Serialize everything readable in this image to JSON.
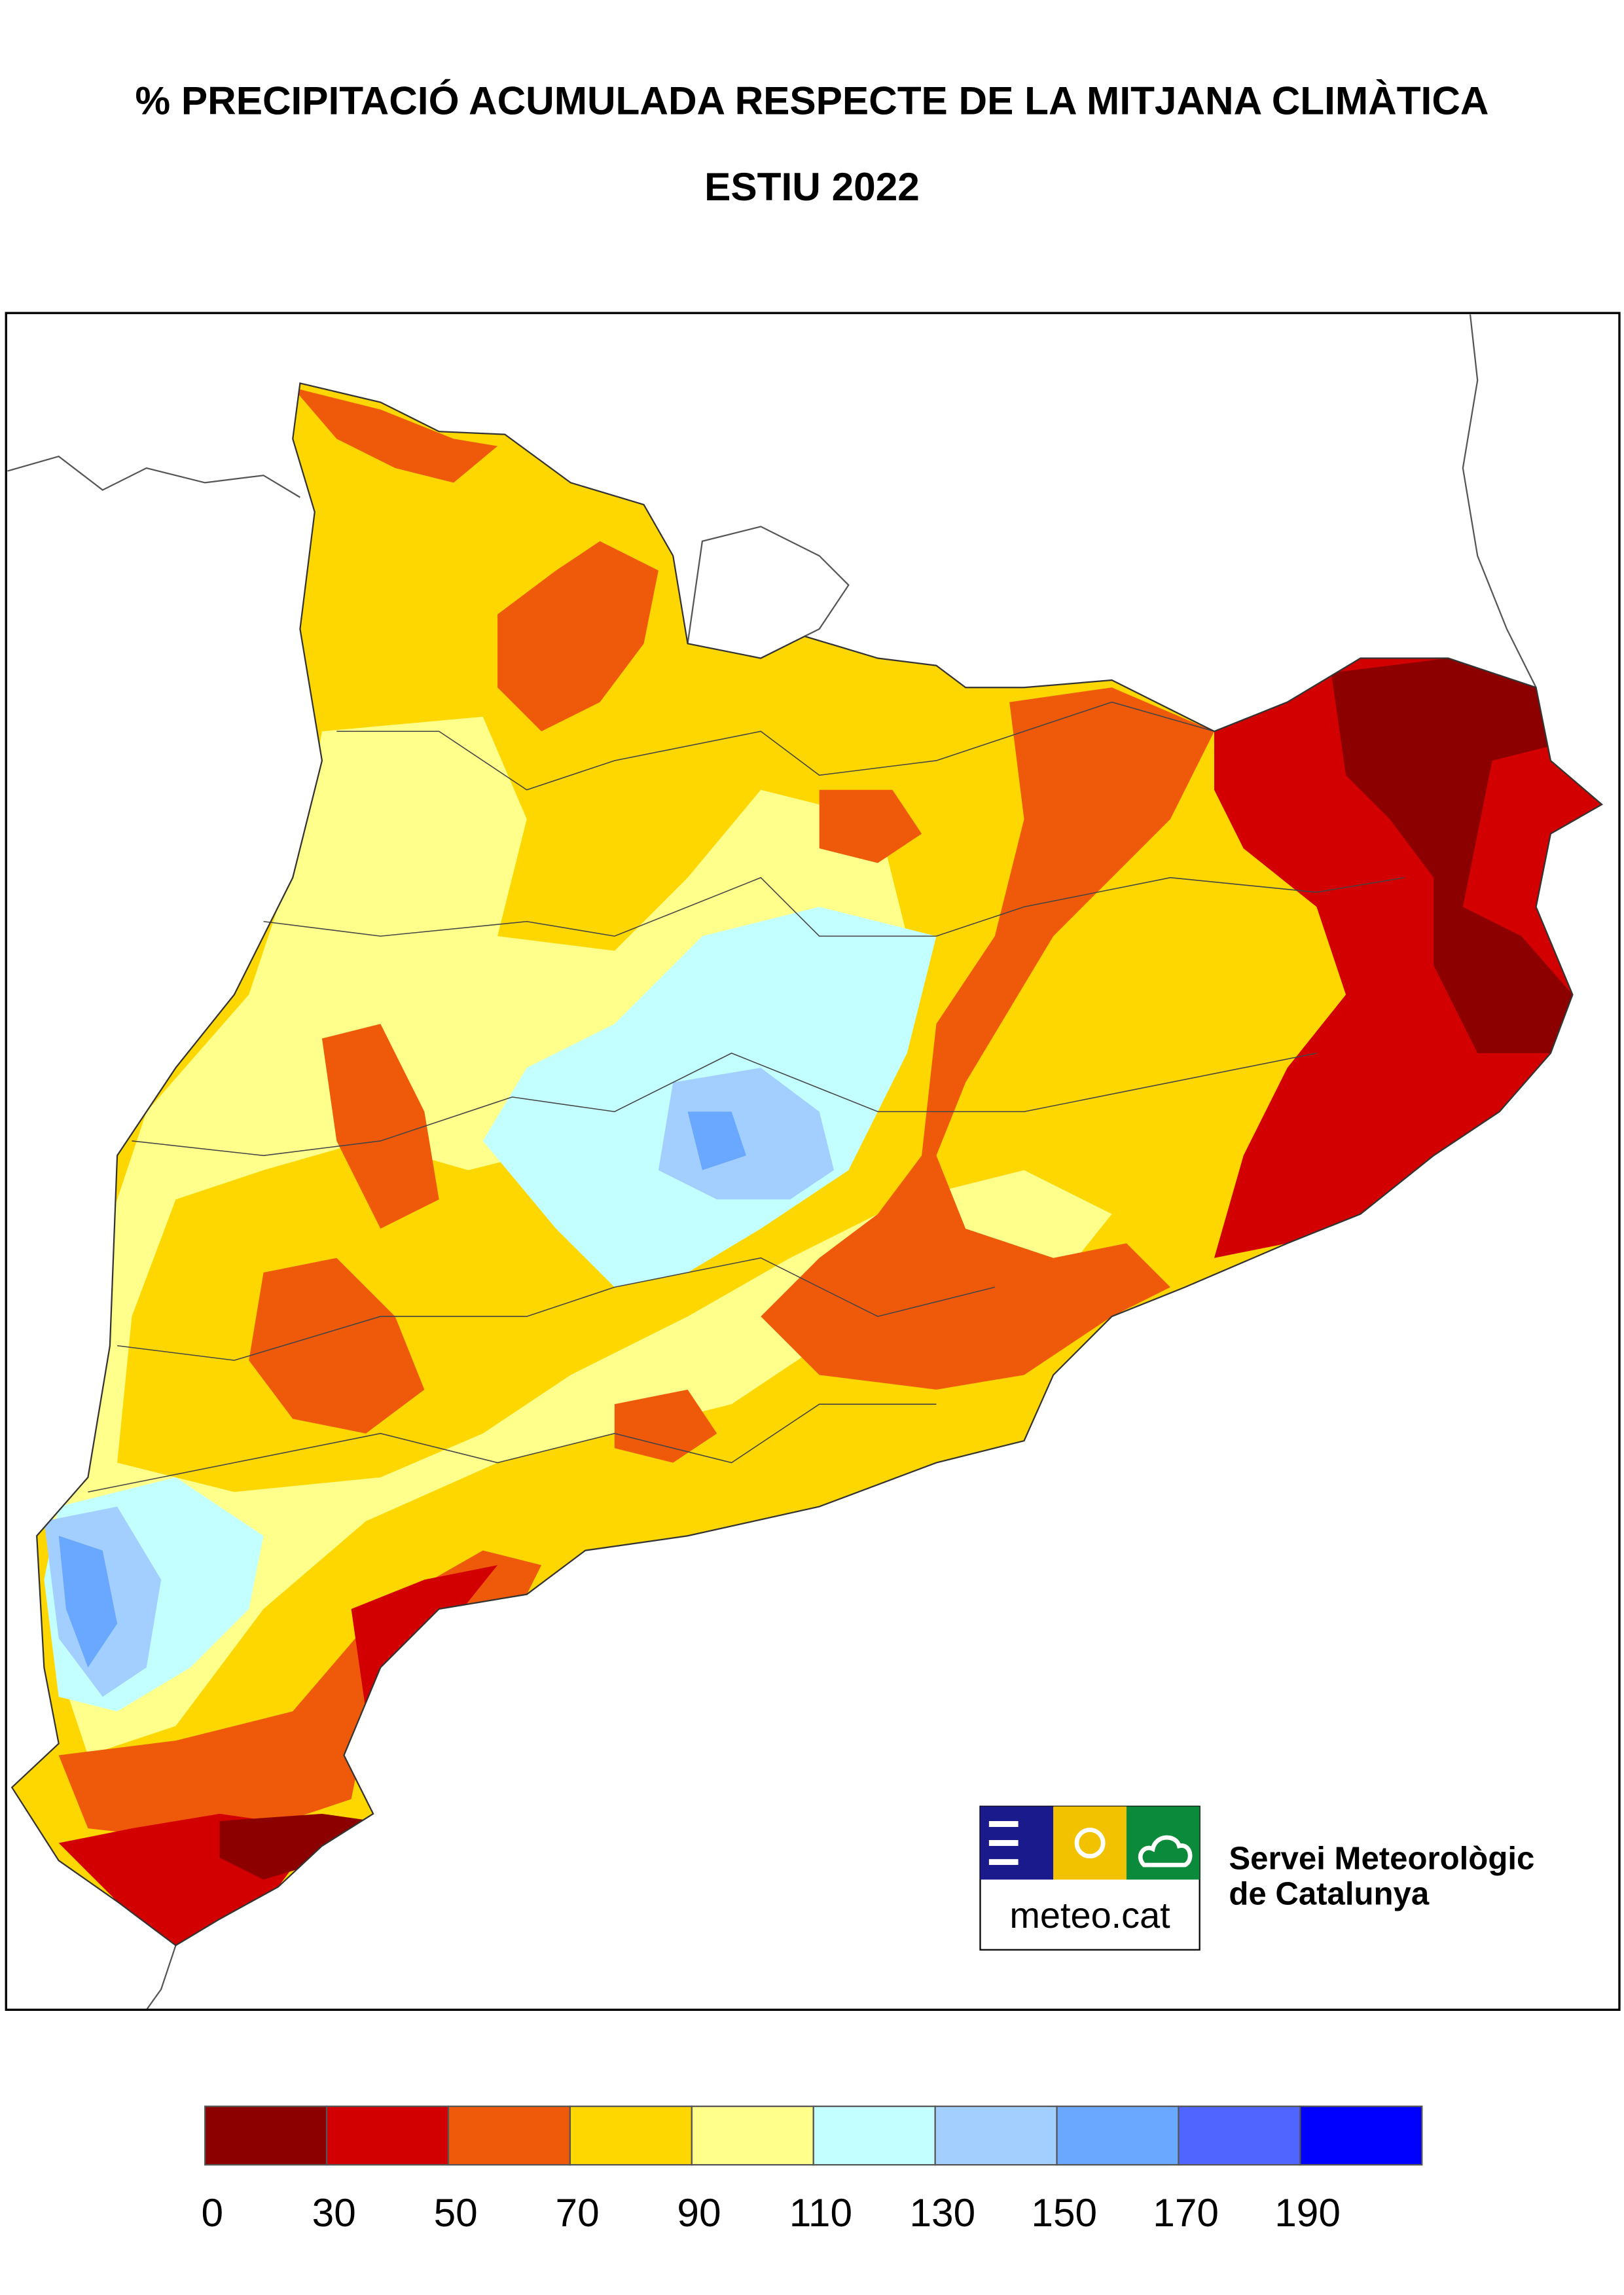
{
  "header": {
    "title": "% PRECIPITACIÓ ACUMULADA RESPECTE DE LA MITJANA CLIMÀTICA",
    "subtitle": "ESTIU 2022"
  },
  "logo": {
    "brand": "meteo.cat",
    "org_line1": "Servei Meteorològic",
    "org_line2": "de Catalunya"
  },
  "legend": {
    "colors": [
      "#8c0000",
      "#d20000",
      "#ef5a0a",
      "#fed700",
      "#ffff8c",
      "#c4ffff",
      "#a2cfff",
      "#6aa7ff",
      "#5064ff",
      "#0000ff"
    ],
    "ticks": [
      0,
      30,
      50,
      70,
      90,
      110,
      130,
      150,
      170,
      190
    ]
  }
}
